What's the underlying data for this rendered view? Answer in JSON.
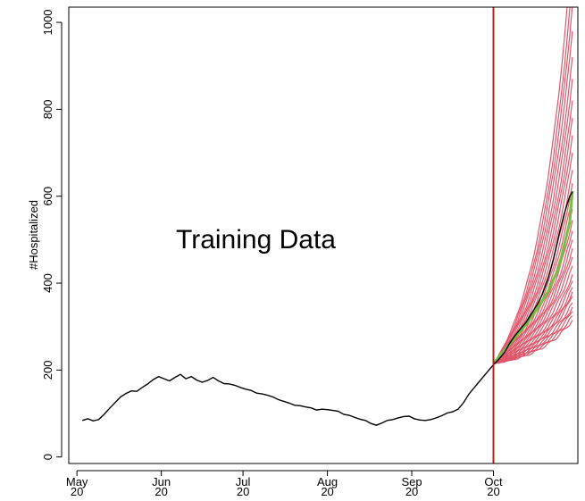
{
  "chart_data": {
    "type": "line",
    "title": "",
    "xlabel": "",
    "ylabel": "#Hospitalized",
    "ylim": [
      -15,
      1035
    ],
    "xlim": [
      "2020-04-28",
      "2020-11-01"
    ],
    "y_ticks": [
      0,
      200,
      400,
      600,
      800,
      1000
    ],
    "x_ticks": [
      {
        "date": "2020-05-01",
        "label": "May",
        "sublabel": "20"
      },
      {
        "date": "2020-06-01",
        "label": "Jun",
        "sublabel": "20"
      },
      {
        "date": "2020-07-01",
        "label": "Jul",
        "sublabel": "20"
      },
      {
        "date": "2020-08-01",
        "label": "Aug",
        "sublabel": "20"
      },
      {
        "date": "2020-09-01",
        "label": "Sep",
        "sublabel": "20"
      },
      {
        "date": "2020-10-01",
        "label": "Oct",
        "sublabel": "20"
      }
    ],
    "grid": false,
    "annotation": "Training Data",
    "cutoff_date": "2020-10-01",
    "colors": {
      "observed": "#000000",
      "forecast_samples": "#e0566a",
      "forecast_mean": "#72c040",
      "cutoff_line": "#b22222"
    },
    "series": [
      {
        "role": "observed",
        "points": [
          [
            "2020-05-03",
            84
          ],
          [
            "2020-05-05",
            88
          ],
          [
            "2020-05-07",
            83
          ],
          [
            "2020-05-09",
            86
          ],
          [
            "2020-05-11",
            98
          ],
          [
            "2020-05-13",
            112
          ],
          [
            "2020-05-15",
            125
          ],
          [
            "2020-05-17",
            138
          ],
          [
            "2020-05-19",
            146
          ],
          [
            "2020-05-21",
            152
          ],
          [
            "2020-05-23",
            151
          ],
          [
            "2020-05-25",
            160
          ],
          [
            "2020-05-27",
            168
          ],
          [
            "2020-05-29",
            178
          ],
          [
            "2020-05-31",
            185
          ],
          [
            "2020-06-02",
            180
          ],
          [
            "2020-06-04",
            175
          ],
          [
            "2020-06-06",
            183
          ],
          [
            "2020-06-08",
            190
          ],
          [
            "2020-06-10",
            180
          ],
          [
            "2020-06-12",
            185
          ],
          [
            "2020-06-14",
            177
          ],
          [
            "2020-06-16",
            172
          ],
          [
            "2020-06-18",
            176
          ],
          [
            "2020-06-20",
            183
          ],
          [
            "2020-06-22",
            175
          ],
          [
            "2020-06-24",
            169
          ],
          [
            "2020-06-26",
            168
          ],
          [
            "2020-06-28",
            165
          ],
          [
            "2020-06-30",
            160
          ],
          [
            "2020-07-02",
            156
          ],
          [
            "2020-07-04",
            153
          ],
          [
            "2020-07-06",
            147
          ],
          [
            "2020-07-08",
            145
          ],
          [
            "2020-07-10",
            142
          ],
          [
            "2020-07-12",
            138
          ],
          [
            "2020-07-14",
            132
          ],
          [
            "2020-07-16",
            128
          ],
          [
            "2020-07-18",
            124
          ],
          [
            "2020-07-20",
            119
          ],
          [
            "2020-07-22",
            118
          ],
          [
            "2020-07-24",
            115
          ],
          [
            "2020-07-26",
            113
          ],
          [
            "2020-07-28",
            108
          ],
          [
            "2020-07-30",
            110
          ],
          [
            "2020-08-01",
            109
          ],
          [
            "2020-08-03",
            107
          ],
          [
            "2020-08-05",
            105
          ],
          [
            "2020-08-07",
            98
          ],
          [
            "2020-08-09",
            96
          ],
          [
            "2020-08-11",
            91
          ],
          [
            "2020-08-13",
            87
          ],
          [
            "2020-08-15",
            84
          ],
          [
            "2020-08-17",
            77
          ],
          [
            "2020-08-19",
            73
          ],
          [
            "2020-08-21",
            78
          ],
          [
            "2020-08-23",
            84
          ],
          [
            "2020-08-25",
            86
          ],
          [
            "2020-08-27",
            90
          ],
          [
            "2020-08-29",
            93
          ],
          [
            "2020-08-31",
            94
          ],
          [
            "2020-09-02",
            88
          ],
          [
            "2020-09-04",
            85
          ],
          [
            "2020-09-06",
            84
          ],
          [
            "2020-09-08",
            86
          ],
          [
            "2020-09-10",
            90
          ],
          [
            "2020-09-12",
            95
          ],
          [
            "2020-09-14",
            101
          ],
          [
            "2020-09-16",
            104
          ],
          [
            "2020-09-18",
            110
          ],
          [
            "2020-09-20",
            125
          ],
          [
            "2020-09-22",
            145
          ],
          [
            "2020-09-24",
            160
          ],
          [
            "2020-09-26",
            175
          ],
          [
            "2020-09-28",
            190
          ],
          [
            "2020-09-30",
            205
          ],
          [
            "2020-10-01",
            212
          ],
          [
            "2020-10-03",
            225
          ],
          [
            "2020-10-05",
            240
          ],
          [
            "2020-10-07",
            262
          ],
          [
            "2020-10-09",
            280
          ],
          [
            "2020-10-11",
            295
          ],
          [
            "2020-10-13",
            310
          ],
          [
            "2020-10-15",
            330
          ],
          [
            "2020-10-17",
            350
          ],
          [
            "2020-10-19",
            375
          ],
          [
            "2020-10-21",
            410
          ],
          [
            "2020-10-23",
            455
          ],
          [
            "2020-10-25",
            510
          ],
          [
            "2020-10-27",
            560
          ],
          [
            "2020-10-29",
            600
          ],
          [
            "2020-10-30",
            610
          ]
        ]
      },
      {
        "role": "forecast_mean",
        "points": [
          [
            "2020-10-01",
            215
          ],
          [
            "2020-10-05",
            245
          ],
          [
            "2020-10-09",
            275
          ],
          [
            "2020-10-13",
            305
          ],
          [
            "2020-10-17",
            340
          ],
          [
            "2020-10-21",
            380
          ],
          [
            "2020-10-25",
            435
          ],
          [
            "2020-10-29",
            540
          ],
          [
            "2020-10-30",
            612
          ]
        ]
      }
    ],
    "forecast_samples": {
      "start_date": "2020-10-01",
      "end_date": "2020-10-30",
      "start_value": 215,
      "end_values": [
        315,
        325,
        335,
        345,
        355,
        370,
        380,
        390,
        405,
        420,
        440,
        460,
        480,
        500,
        520,
        545,
        570,
        600,
        630,
        660,
        700,
        740,
        780,
        820,
        870,
        920,
        980,
        1040,
        1100,
        1180
      ]
    }
  }
}
